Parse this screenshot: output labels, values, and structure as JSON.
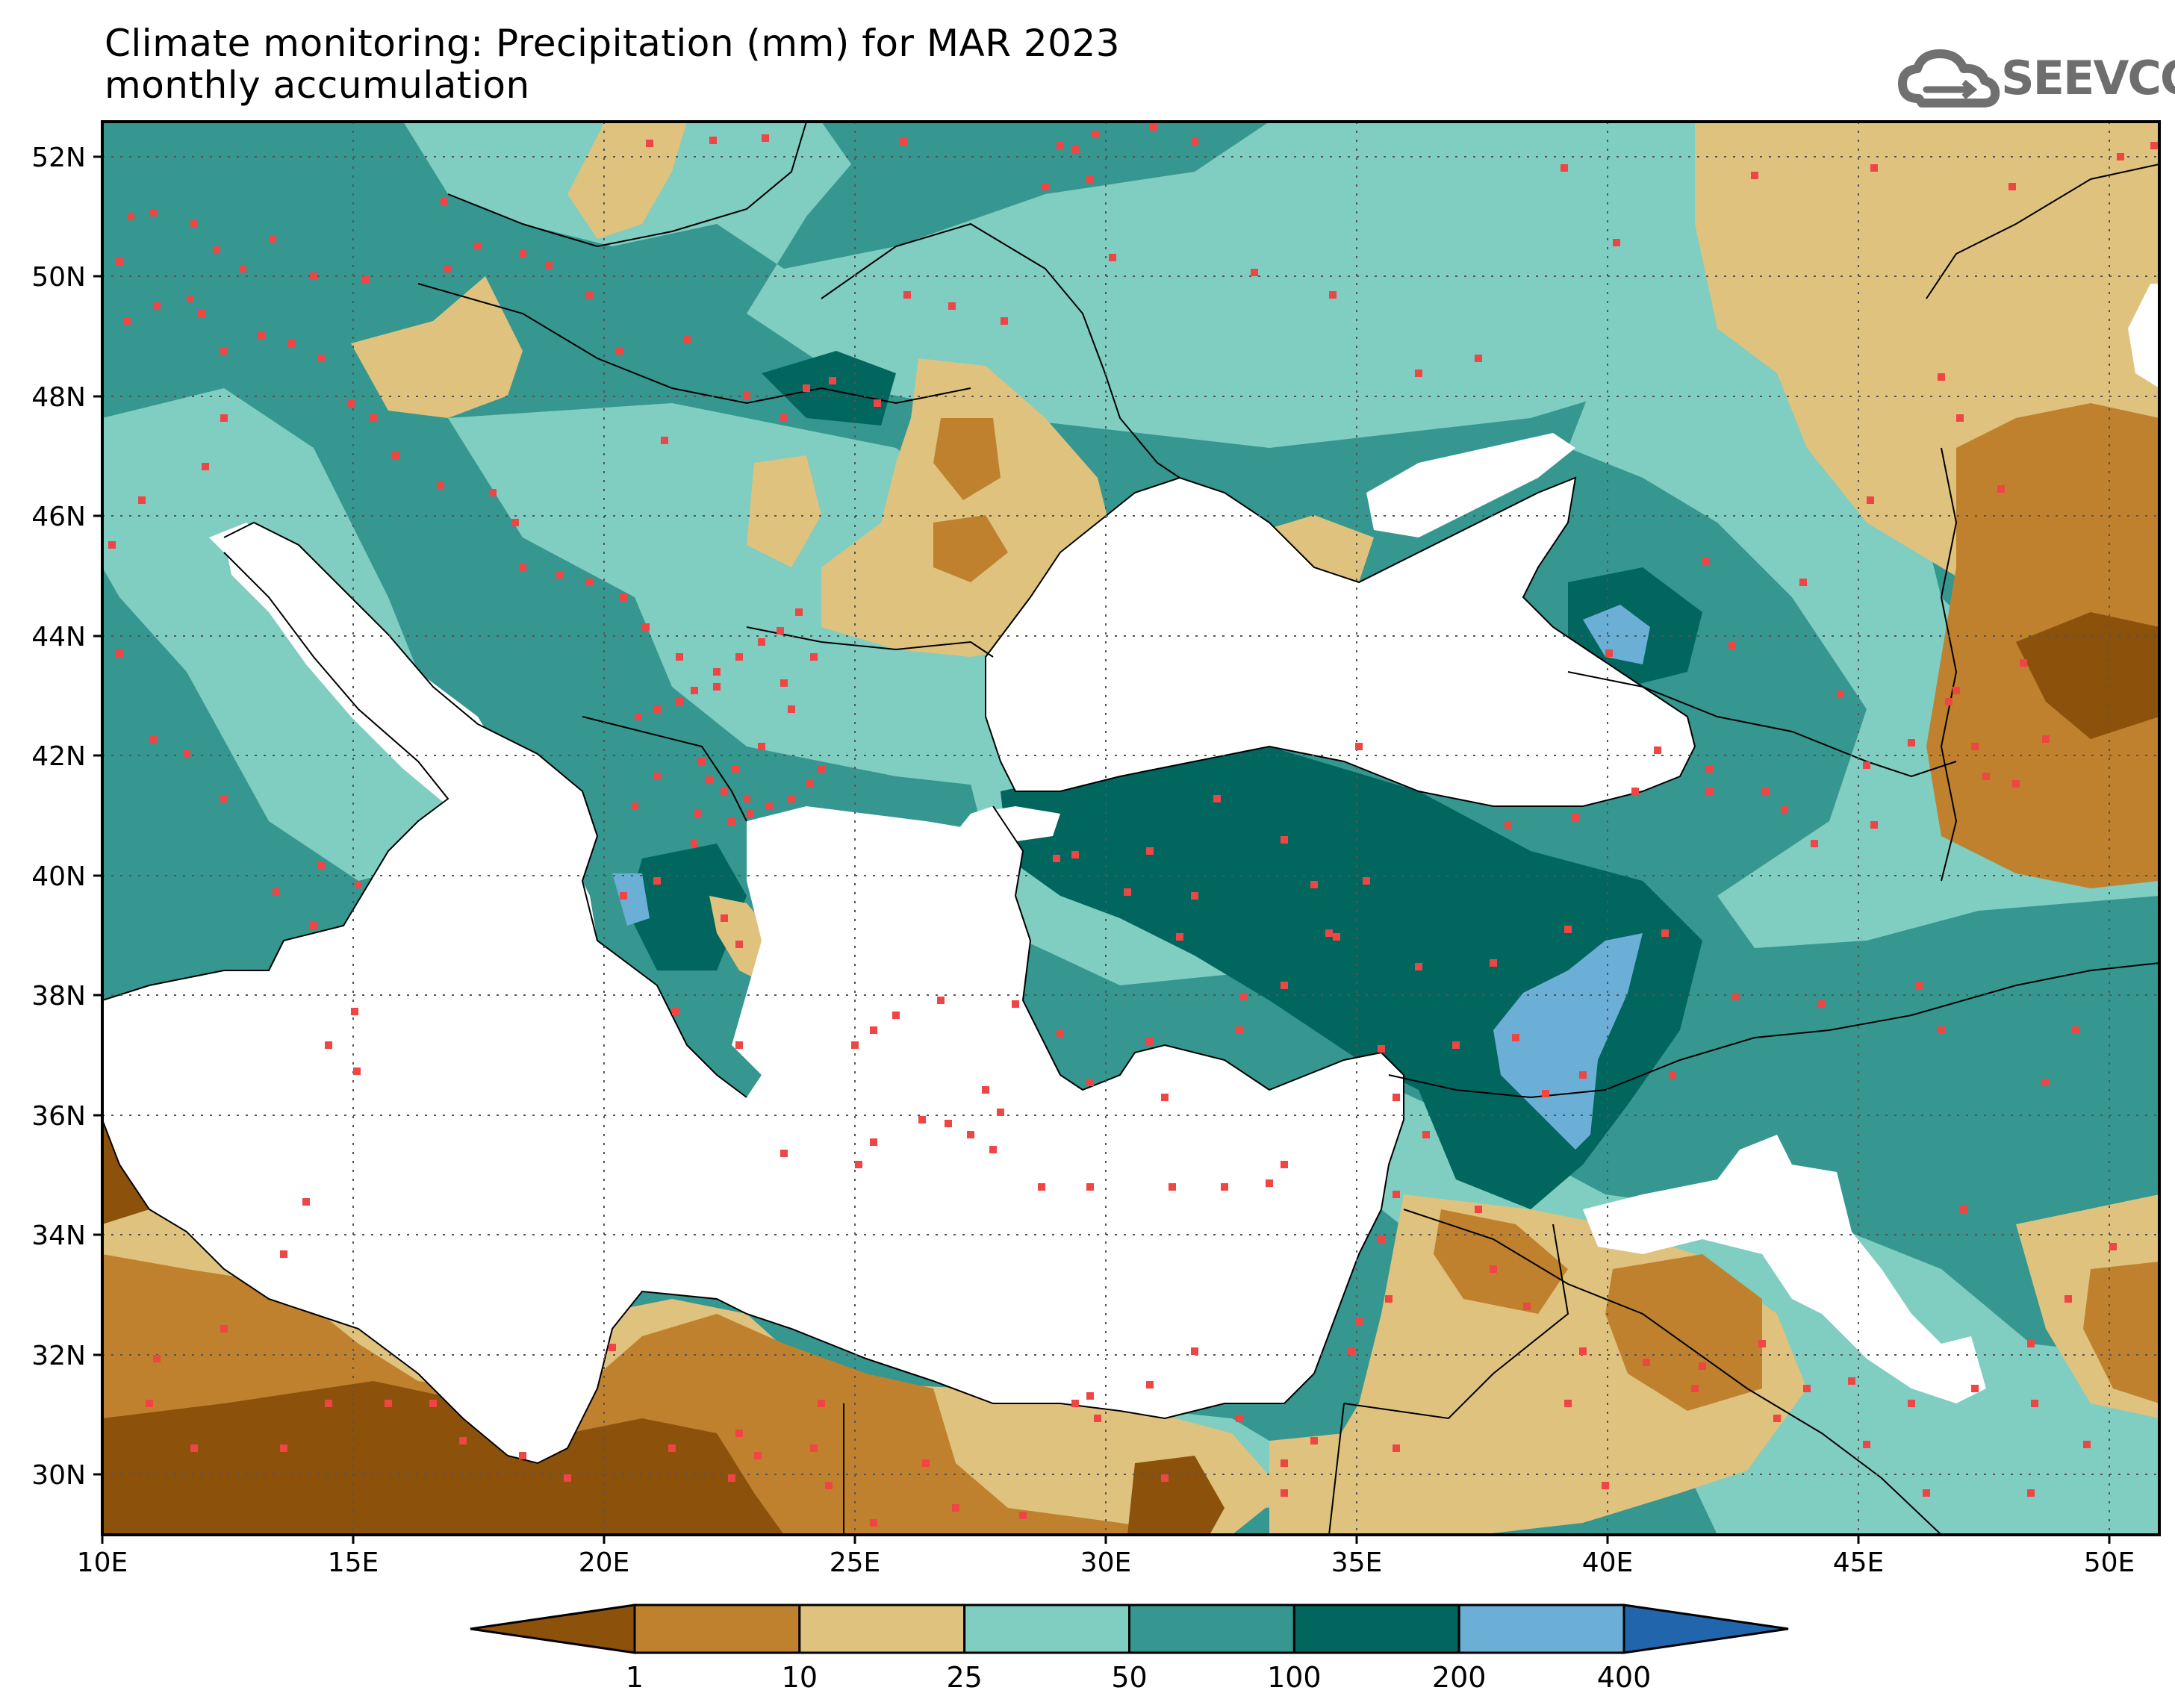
{
  "title": {
    "line1": "Climate monitoring: Precipitation (mm) for MAR 2023",
    "line2": "monthly accumulation"
  },
  "logo": {
    "text": "SEEVCCC",
    "icon": "cloud-icon",
    "color": "#707070"
  },
  "map": {
    "variable": "Precipitation",
    "units": "mm",
    "period": "MAR 2023",
    "lon_range": [
      10,
      51
    ],
    "lat_range": [
      29,
      52.6
    ],
    "lon_ticks": [
      "10E",
      "15E",
      "20E",
      "25E",
      "30E",
      "35E",
      "40E",
      "45E",
      "50E"
    ],
    "lat_ticks": [
      "30N",
      "32N",
      "34N",
      "36N",
      "38N",
      "40N",
      "42N",
      "44N",
      "46N",
      "48N",
      "50N",
      "52N"
    ],
    "gridlines": "dotted",
    "station_marker_color": "#f04545",
    "sea_color": "#ffffff"
  },
  "legend": {
    "placement": "bottom",
    "bins": [
      {
        "label": "<1",
        "color": "#8c510a"
      },
      {
        "label": "1-10",
        "color": "#bf812d"
      },
      {
        "label": "10-25",
        "color": "#dfc27d"
      },
      {
        "label": "25-50",
        "color": "#80cdc1"
      },
      {
        "label": "50-100",
        "color": "#35978f"
      },
      {
        "label": "100-200",
        "color": "#01665e"
      },
      {
        "label": "200-400",
        "color": "#6baed6"
      },
      {
        "label": ">400",
        "color": "#2166ac"
      }
    ],
    "boundary_labels": [
      "1",
      "10",
      "25",
      "50",
      "100",
      "200",
      "400"
    ]
  }
}
